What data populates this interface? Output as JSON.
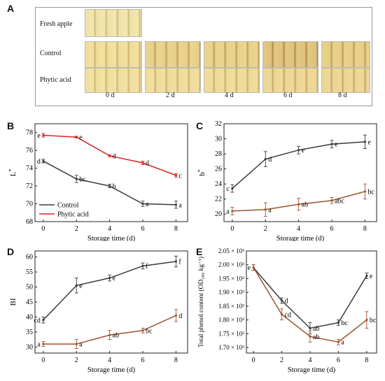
{
  "panel_letters": {
    "a": "A",
    "b": "B",
    "c": "C",
    "d": "D",
    "e": "E"
  },
  "photo_panel": {
    "rows": [
      "Fresh apple",
      "Control",
      "Phytic acid"
    ],
    "days": [
      "0 d",
      "2 d",
      "4 d",
      "6 d",
      "8 d"
    ]
  },
  "colors": {
    "control": "#3a3a3a",
    "phytic": "#a0522d",
    "phytic_line": "#e02020"
  },
  "chart_data": [
    {
      "id": "B",
      "type": "line",
      "xlabel": "Storage time (d)",
      "ylabel": "L",
      "ylabel_sup": "*",
      "x": [
        0,
        2,
        4,
        6,
        8
      ],
      "xticks": [
        "0",
        "2",
        "4",
        "6",
        "8"
      ],
      "ylim": [
        68,
        79
      ],
      "yticks": [
        "68",
        "70",
        "72",
        "74",
        "76",
        "78"
      ],
      "legend": {
        "placement": "bottom-left",
        "entries": [
          "Control",
          "Phytic acid"
        ]
      },
      "series": [
        {
          "name": "Control",
          "values": [
            74.8,
            72.8,
            72.0,
            70.0,
            69.9
          ],
          "err": [
            0.2,
            0.4,
            0.2,
            0.3,
            0.4
          ],
          "labels": [
            "d",
            "bc",
            "b",
            "a",
            "a"
          ],
          "color": "#3a3a3a"
        },
        {
          "name": "Phytic acid",
          "values": [
            77.7,
            77.5,
            75.4,
            74.6,
            73.2
          ],
          "err": [
            0.2,
            0.1,
            0.1,
            0.2,
            0.2
          ],
          "labels": [
            "e",
            "e",
            "d",
            "d",
            "c"
          ],
          "color": "#e02020"
        }
      ]
    },
    {
      "id": "C",
      "type": "line",
      "xlabel": "Storage time (d)",
      "ylabel": "b",
      "ylabel_sup": "*",
      "x": [
        0,
        2,
        4,
        6,
        8
      ],
      "xticks": [
        "0",
        "2",
        "4",
        "6",
        "8"
      ],
      "ylim": [
        19,
        32
      ],
      "yticks": [
        "20",
        "22",
        "24",
        "26",
        "28",
        "30",
        "32"
      ],
      "series": [
        {
          "name": "Control",
          "values": [
            23.4,
            27.3,
            28.5,
            29.3,
            29.6
          ],
          "err": [
            0.5,
            1.0,
            0.5,
            0.5,
            0.9
          ],
          "labels": [
            "c",
            "d",
            "e",
            "e",
            "e"
          ],
          "color": "#3a3a3a"
        },
        {
          "name": "Phytic acid",
          "values": [
            20.4,
            20.6,
            21.3,
            21.8,
            23.0
          ],
          "err": [
            0.5,
            0.9,
            0.8,
            0.4,
            1.0
          ],
          "labels": [
            "a",
            "a",
            "ab",
            "abc",
            "bc"
          ],
          "color": "#a0522d"
        }
      ]
    },
    {
      "id": "D",
      "type": "line",
      "xlabel": "Storage time (d)",
      "ylabel": "BI",
      "x": [
        0,
        2,
        4,
        6,
        8
      ],
      "xticks": [
        "0",
        "2",
        "4",
        "6",
        "8"
      ],
      "ylim": [
        28,
        62
      ],
      "yticks": [
        "30",
        "35",
        "40",
        "45",
        "50",
        "55",
        "60"
      ],
      "series": [
        {
          "name": "Control",
          "values": [
            39.0,
            50.5,
            53.0,
            57.0,
            58.5
          ],
          "err": [
            1.0,
            2.5,
            1.0,
            1.0,
            1.8
          ],
          "labels": [
            "cd",
            "e",
            "e",
            "f",
            "f"
          ],
          "color": "#3a3a3a"
        },
        {
          "name": "Phytic acid",
          "values": [
            31.0,
            31.0,
            34.0,
            35.5,
            40.5
          ],
          "err": [
            0.8,
            1.5,
            1.5,
            0.8,
            2.0
          ],
          "labels": [
            "a",
            "a",
            "ab",
            "bc",
            "d"
          ],
          "color": "#a0522d"
        }
      ]
    },
    {
      "id": "E",
      "type": "line",
      "xlabel": "Storage time (d)",
      "ylabel": "Total phenol content (OD₂₈₀ kg⁻¹)",
      "x": [
        0,
        2,
        4,
        6,
        8
      ],
      "xticks": [
        "0",
        "2",
        "4",
        "6",
        "8"
      ],
      "ylim": [
        1.68,
        2.05
      ],
      "yticks": [
        "1.70 × 10³",
        "1.75 × 10³",
        "1.80 × 10³",
        "1.85 × 10³",
        "1.90 × 10³",
        "1.95 × 10³",
        "2.00 × 10³",
        "2.05 × 10³"
      ],
      "series": [
        {
          "name": "Control",
          "values": [
            1.99,
            1.87,
            1.77,
            1.79,
            1.96
          ],
          "err": [
            0.01,
            0.01,
            0.02,
            0.01,
            0.01
          ],
          "labels": [
            "e",
            "d",
            "ab",
            "bc",
            "e"
          ],
          "color": "#3a3a3a"
        },
        {
          "name": "Phytic acid",
          "values": [
            1.99,
            1.82,
            1.74,
            1.72,
            1.8
          ],
          "err": [
            0.01,
            0.02,
            0.02,
            0.01,
            0.03
          ],
          "labels": [
            "",
            "cd",
            "ab",
            "a",
            "bc"
          ],
          "color": "#a0522d"
        }
      ]
    }
  ]
}
